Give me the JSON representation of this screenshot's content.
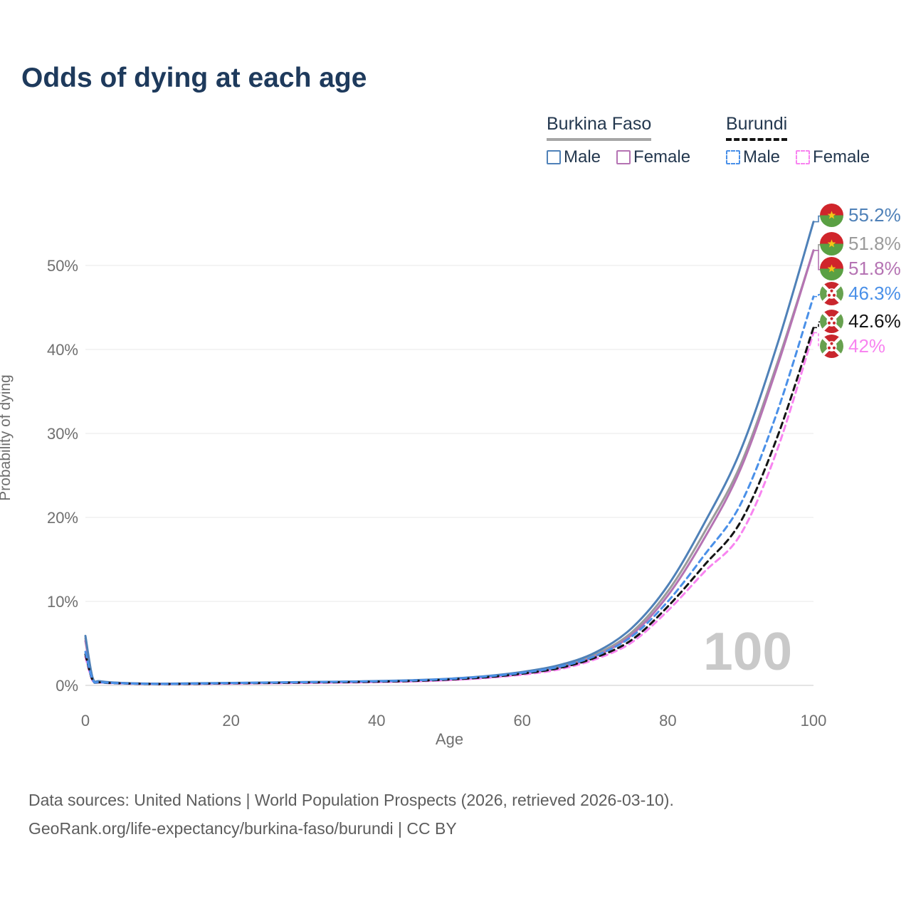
{
  "title": "Odds of dying at each age",
  "legend": {
    "groups": [
      {
        "name": "Burkina Faso",
        "underline_color": "#a6a6a6",
        "underline_dashed": false,
        "items": [
          {
            "label": "Male",
            "color": "#4f81b8",
            "dashed": false
          },
          {
            "label": "Female",
            "color": "#b573b3",
            "dashed": false
          }
        ]
      },
      {
        "name": "Burundi",
        "underline_color": "#141414",
        "underline_dashed": true,
        "items": [
          {
            "label": "Male",
            "color": "#4a90e8",
            "dashed": true
          },
          {
            "label": "Female",
            "color": "#f884f0",
            "dashed": true
          }
        ]
      }
    ]
  },
  "chart_data": {
    "type": "line",
    "title": "Odds of dying at each age",
    "xlabel": "Age",
    "ylabel": "Probability of dying",
    "xlim": [
      0,
      100
    ],
    "ylim": [
      0,
      57
    ],
    "grid": "horizontal",
    "legend_position": "top-right",
    "watermark": "100",
    "x_ticks": {
      "values": [
        0,
        20,
        40,
        60,
        80,
        100
      ],
      "labels": [
        "0",
        "20",
        "40",
        "60",
        "80",
        "100"
      ]
    },
    "y_ticks": {
      "values": [
        0,
        10,
        20,
        30,
        40,
        50
      ],
      "labels": [
        "0%",
        "10%",
        "20%",
        "30%",
        "40%",
        "50%"
      ]
    },
    "ages": [
      0,
      1,
      2,
      5,
      10,
      15,
      20,
      25,
      30,
      35,
      40,
      45,
      50,
      55,
      60,
      65,
      70,
      75,
      80,
      85,
      90,
      95,
      100
    ],
    "series": [
      {
        "name": "Burkina Faso Male",
        "country": "Burkina Faso",
        "sex": "Male",
        "color": "#4f81b8",
        "dashed": false,
        "end_label": "55.2%",
        "end_value": 55.2,
        "values": [
          5.9,
          0.9,
          0.5,
          0.3,
          0.2,
          0.25,
          0.3,
          0.35,
          0.4,
          0.45,
          0.52,
          0.62,
          0.8,
          1.1,
          1.6,
          2.4,
          3.9,
          6.8,
          11.9,
          19.3,
          28.0,
          40.5,
          55.2
        ]
      },
      {
        "name": "Burkina Faso Both sexes",
        "country": "Burkina Faso",
        "sex": "Both",
        "color": "#9b9b9b",
        "dashed": false,
        "end_label": "51.8%",
        "end_value": 51.8,
        "values": [
          5.6,
          0.85,
          0.47,
          0.28,
          0.19,
          0.22,
          0.27,
          0.31,
          0.35,
          0.4,
          0.46,
          0.56,
          0.73,
          1.0,
          1.45,
          2.2,
          3.65,
          6.3,
          11.2,
          18.2,
          26.3,
          38.3,
          51.8
        ]
      },
      {
        "name": "Burkina Faso Female",
        "country": "Burkina Faso",
        "sex": "Female",
        "color": "#b573b3",
        "dashed": false,
        "end_label": "51.8%",
        "end_value": 51.8,
        "values": [
          5.3,
          0.8,
          0.45,
          0.27,
          0.18,
          0.2,
          0.23,
          0.27,
          0.31,
          0.35,
          0.41,
          0.5,
          0.66,
          0.93,
          1.36,
          2.08,
          3.45,
          6.0,
          10.7,
          17.5,
          25.8,
          37.9,
          51.8
        ]
      },
      {
        "name": "Burundi Male",
        "country": "Burundi",
        "sex": "Male",
        "color": "#4a90e8",
        "dashed": true,
        "end_label": "46.3%",
        "end_value": 46.3,
        "values": [
          4.0,
          0.65,
          0.38,
          0.25,
          0.17,
          0.21,
          0.28,
          0.33,
          0.38,
          0.43,
          0.49,
          0.59,
          0.77,
          1.06,
          1.5,
          2.2,
          3.5,
          5.8,
          10.0,
          15.5,
          21.6,
          32.5,
          46.3
        ]
      },
      {
        "name": "Burundi Both sexes",
        "country": "Burundi",
        "sex": "Both",
        "color": "#141414",
        "dashed": true,
        "end_label": "42.6%",
        "end_value": 42.6,
        "values": [
          3.7,
          0.6,
          0.36,
          0.24,
          0.16,
          0.19,
          0.25,
          0.29,
          0.34,
          0.38,
          0.44,
          0.53,
          0.7,
          0.97,
          1.4,
          2.05,
          3.3,
          5.4,
          9.4,
          14.3,
          19.5,
          29.5,
          42.6
        ]
      },
      {
        "name": "Burundi Female",
        "country": "Burundi",
        "sex": "Female",
        "color": "#f884f0",
        "dashed": true,
        "end_label": "42%",
        "end_value": 42.0,
        "values": [
          3.4,
          0.55,
          0.34,
          0.22,
          0.15,
          0.17,
          0.21,
          0.25,
          0.29,
          0.33,
          0.39,
          0.47,
          0.63,
          0.88,
          1.28,
          1.9,
          3.1,
          5.1,
          8.9,
          13.5,
          18.0,
          28.0,
          42.0
        ]
      }
    ]
  },
  "footer": {
    "line1": "Data sources: United Nations | World Population Prospects (2026, retrieved 2026-03-10).",
    "line2": "GeoRank.org/life-expectancy/burkina-faso/burundi | CC BY"
  }
}
